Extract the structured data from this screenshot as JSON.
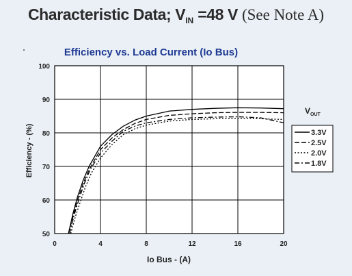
{
  "header": {
    "title_main": "Characteristic Data; V",
    "title_sub": "IN",
    "title_value": "=48 V",
    "title_note": "(See Note A)"
  },
  "colors": {
    "background": "#eaf0f6",
    "chart_title": "#1f3a93",
    "plot_area": "#ffffff",
    "series": "#000000"
  },
  "chart_data": {
    "type": "line",
    "title": "Efficiency vs. Load Current (Io Bus)",
    "xlabel": "Io Bus - (A)",
    "ylabel": "Efficiency - (%)",
    "xlim": [
      0,
      20
    ],
    "ylim": [
      50,
      100
    ],
    "x_ticks": [
      "0",
      "4",
      "8",
      "12",
      "16",
      "20"
    ],
    "y_ticks": [
      "50",
      "60",
      "70",
      "80",
      "90",
      "100"
    ],
    "grid": true,
    "legend_title": "V",
    "legend_title_sub": "OUT",
    "legend_position": "right",
    "series": [
      {
        "name": "3.3V",
        "dash": "solid",
        "x": [
          1.2,
          1.6,
          2,
          2.5,
          3,
          4,
          5,
          6,
          7,
          8,
          10,
          12,
          14,
          16,
          18,
          20
        ],
        "y": [
          50,
          56,
          61,
          66,
          70,
          76,
          79.5,
          82,
          83.8,
          85,
          86.5,
          87,
          87.3,
          87.5,
          87.4,
          87.2
        ]
      },
      {
        "name": "2.5V",
        "dash": "dashed",
        "x": [
          1.2,
          1.6,
          2,
          2.5,
          3,
          4,
          5,
          6,
          7,
          8,
          10,
          12,
          14,
          16,
          18,
          20
        ],
        "y": [
          50,
          55,
          60,
          65,
          69,
          75,
          78.5,
          81,
          82.8,
          84,
          85.2,
          85.7,
          86,
          86.1,
          86.1,
          86
        ]
      },
      {
        "name": "2.0V",
        "dash": "dotted",
        "x": [
          1.4,
          1.8,
          2.2,
          2.7,
          3.2,
          4,
          5,
          6,
          7,
          8,
          10,
          12,
          14,
          16,
          18,
          20
        ],
        "y": [
          50,
          55,
          59,
          64,
          68,
          72.5,
          76.5,
          79.5,
          81.2,
          82.3,
          83.5,
          84,
          84.2,
          84.3,
          84.2,
          84
        ]
      },
      {
        "name": "1.8V",
        "dash": "dashdot",
        "x": [
          1.3,
          1.7,
          2.1,
          2.6,
          3.1,
          4,
          5,
          6,
          7,
          8,
          10,
          12,
          14,
          16,
          18,
          20
        ],
        "y": [
          50,
          55.5,
          60,
          65,
          69,
          74,
          77.5,
          80.5,
          82,
          83,
          84,
          84.5,
          84.7,
          84.8,
          84.5,
          83
        ]
      }
    ]
  }
}
